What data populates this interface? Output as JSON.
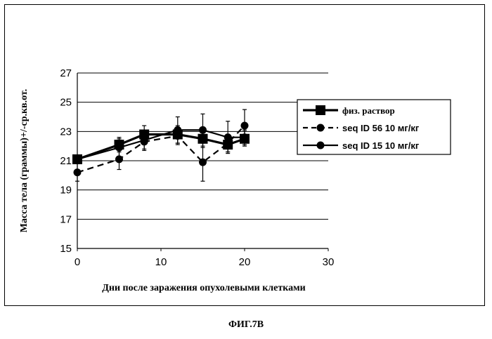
{
  "chart_data": {
    "type": "line",
    "title": "",
    "xlabel": "Дни после заражения опухолевыми клетками",
    "ylabel": "Масса тела (граммы)+/-ср.кв.от.",
    "xlim": [
      0,
      30
    ],
    "ylim": [
      15,
      27
    ],
    "x_ticks": [
      "0",
      "10",
      "20",
      "30"
    ],
    "y_ticks": [
      "15",
      "17",
      "19",
      "21",
      "23",
      "25",
      "27"
    ],
    "grid": "horizontal",
    "legend_position": "right",
    "series": [
      {
        "name": "физ. раствор",
        "style": "solid",
        "marker": "square",
        "x": [
          0,
          5,
          8,
          12,
          15,
          18,
          20
        ],
        "y": [
          21.1,
          22.1,
          22.8,
          22.8,
          22.5,
          22.1,
          22.5
        ],
        "err": [
          0.3,
          0.5,
          0.6,
          0.6,
          0.6,
          0.5,
          0.5
        ]
      },
      {
        "name": "seq ID 56 10 мг/кг",
        "style": "dashed",
        "marker": "circle",
        "x": [
          0,
          5,
          8,
          12,
          15,
          18,
          20
        ],
        "y": [
          20.2,
          21.1,
          22.3,
          22.7,
          20.9,
          22.2,
          23.4
        ],
        "err": [
          0.6,
          0.7,
          0.6,
          0.6,
          1.3,
          0.6,
          1.1
        ]
      },
      {
        "name": "seq ID 15 10 мг/кг",
        "style": "solid",
        "marker": "circle",
        "x": [
          0,
          5,
          8,
          12,
          15,
          18,
          20
        ],
        "y": [
          21.1,
          21.9,
          22.4,
          23.1,
          23.1,
          22.6,
          22.6
        ],
        "err": [
          0.3,
          0.6,
          0.6,
          0.9,
          1.1,
          1.1,
          0.5
        ]
      }
    ]
  },
  "caption": "ФИГ.7В"
}
